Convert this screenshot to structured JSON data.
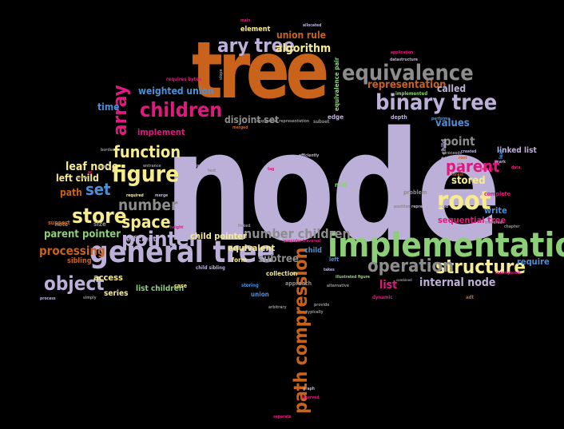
{
  "palette": {
    "lavender": "#bcb0d9",
    "orange": "#c9621b",
    "green": "#8dcf78",
    "pink": "#e0197e",
    "yellow": "#f6eb8f",
    "blue": "#4a8fd8",
    "grey": "#8d8d8d",
    "background": "#000000"
  },
  "words": [
    {
      "text": "node",
      "color": "lavender"
    },
    {
      "text": "tree",
      "color": "orange"
    },
    {
      "text": "implementation",
      "color": "green"
    },
    {
      "text": "general tree",
      "color": "lavender"
    },
    {
      "text": "binary tree",
      "color": "lavender"
    },
    {
      "text": "path compression",
      "color": "orange"
    },
    {
      "text": "ary tree",
      "color": "lavender"
    },
    {
      "text": "equivalence",
      "color": "grey"
    },
    {
      "text": "root",
      "color": "yellow"
    },
    {
      "text": "structure",
      "color": "yellow"
    },
    {
      "text": "operation",
      "color": "grey"
    },
    {
      "text": "array",
      "color": "pink"
    },
    {
      "text": "children",
      "color": "pink"
    },
    {
      "text": "figure",
      "color": "yellow"
    },
    {
      "text": "function",
      "color": "yellow"
    },
    {
      "text": "store",
      "color": "yellow"
    },
    {
      "text": "space",
      "color": "yellow"
    },
    {
      "text": "pointer",
      "color": "lavender"
    },
    {
      "text": "object",
      "color": "lavender"
    },
    {
      "text": "parent",
      "color": "pink"
    },
    {
      "text": "number",
      "color": "grey"
    },
    {
      "text": "number children",
      "color": "grey"
    },
    {
      "text": "algorithm",
      "color": "yellow"
    },
    {
      "text": "union rule",
      "color": "orange"
    },
    {
      "text": "set",
      "color": "blue"
    },
    {
      "text": "representation",
      "color": "orange"
    },
    {
      "text": "list",
      "color": "pink"
    },
    {
      "text": "internal node",
      "color": "lavender"
    },
    {
      "text": "weighted union",
      "color": "blue"
    },
    {
      "text": "processing",
      "color": "orange"
    },
    {
      "text": "parent pointer",
      "color": "green"
    },
    {
      "text": "point",
      "color": "grey"
    },
    {
      "text": "values",
      "color": "blue"
    },
    {
      "text": "stored",
      "color": "yellow"
    },
    {
      "text": "leaf node",
      "color": "yellow"
    },
    {
      "text": "left child",
      "color": "yellow"
    },
    {
      "text": "path",
      "color": "orange"
    },
    {
      "text": "subtree",
      "color": "grey"
    },
    {
      "text": "child pointer",
      "color": "yellow"
    },
    {
      "text": "called",
      "color": "lavender"
    },
    {
      "text": "disjoint set",
      "color": "grey"
    },
    {
      "text": "equivalent",
      "color": "yellow"
    },
    {
      "text": "sequential tree",
      "color": "pink"
    },
    {
      "text": "write",
      "color": "blue"
    },
    {
      "text": "require",
      "color": "blue"
    },
    {
      "text": "time",
      "color": "blue"
    },
    {
      "text": "implement",
      "color": "pink"
    },
    {
      "text": "access",
      "color": "yellow"
    },
    {
      "text": "series",
      "color": "yellow"
    },
    {
      "text": "list children",
      "color": "green"
    },
    {
      "text": "child",
      "color": "blue"
    },
    {
      "text": "linked list",
      "color": "lavender"
    },
    {
      "text": "element",
      "color": "yellow"
    },
    {
      "text": "sibling",
      "color": "orange"
    },
    {
      "text": "efficient",
      "color": "lavender"
    },
    {
      "text": "collection",
      "color": "yellow"
    },
    {
      "text": "union",
      "color": "blue"
    },
    {
      "text": "edge",
      "color": "lavender"
    },
    {
      "text": "depth",
      "color": "lavender"
    },
    {
      "text": "null",
      "color": "green"
    },
    {
      "text": "size",
      "color": "grey"
    },
    {
      "text": "note",
      "color": "grey"
    },
    {
      "text": "support",
      "color": "orange"
    },
    {
      "text": "form",
      "color": "yellow"
    },
    {
      "text": "left",
      "color": "blue"
    },
    {
      "text": "approach",
      "color": "grey"
    },
    {
      "text": "dynamic",
      "color": "pink"
    },
    {
      "text": "adt",
      "color": "orange"
    },
    {
      "text": "problem",
      "color": "grey"
    },
    {
      "text": "complete",
      "color": "pink"
    },
    {
      "text": "case",
      "color": "yellow"
    },
    {
      "text": "implemented",
      "color": "green"
    },
    {
      "text": "leftmost child",
      "color": "lavender"
    },
    {
      "text": "equivalence pair",
      "color": "green"
    },
    {
      "text": "subset",
      "color": "grey"
    },
    {
      "text": "storing",
      "color": "blue"
    },
    {
      "text": "child sibling",
      "color": "lavender"
    },
    {
      "text": "requires bytes",
      "color": "pink"
    },
    {
      "text": "datastructure",
      "color": "lavender"
    },
    {
      "text": "application",
      "color": "pink"
    },
    {
      "text": "allocated",
      "color": "lavender"
    },
    {
      "text": "branches",
      "color": "orange"
    },
    {
      "text": "main",
      "color": "pink"
    },
    {
      "text": "linked",
      "color": "grey"
    },
    {
      "text": "based",
      "color": "lavender"
    },
    {
      "text": "provide",
      "color": "grey"
    },
    {
      "text": "typically",
      "color": "grey"
    },
    {
      "text": "graph",
      "color": "lavender"
    },
    {
      "text": "reserved",
      "color": "pink"
    },
    {
      "text": "separate",
      "color": "pink"
    },
    {
      "text": "takes",
      "color": "lavender"
    },
    {
      "text": "illustrated figure",
      "color": "green"
    },
    {
      "text": "combined",
      "color": "grey"
    },
    {
      "text": "represent",
      "color": "lavender"
    },
    {
      "text": "represented",
      "color": "lavender"
    },
    {
      "text": "position",
      "color": "grey"
    },
    {
      "text": "change",
      "color": "lavender"
    },
    {
      "text": "alternative",
      "color": "grey"
    },
    {
      "text": "preorder traversal",
      "color": "pink"
    },
    {
      "text": "arbitrary",
      "color": "grey"
    },
    {
      "text": "process",
      "color": "lavender"
    },
    {
      "text": "simply",
      "color": "grey"
    },
    {
      "text": "merge",
      "color": "lavender"
    },
    {
      "text": "required",
      "color": "yellow"
    },
    {
      "text": "entrance",
      "color": "grey"
    },
    {
      "text": "height",
      "color": "pink"
    },
    {
      "text": "sequential representation",
      "color": "grey"
    },
    {
      "text": "created",
      "color": "lavender"
    },
    {
      "text": "proceeds",
      "color": "grey"
    },
    {
      "text": "return",
      "color": "pink"
    },
    {
      "text": "mark",
      "color": "lavender"
    },
    {
      "text": "leaf",
      "color": "blue"
    },
    {
      "text": "data",
      "color": "pink"
    },
    {
      "text": "traversal",
      "color": "grey"
    },
    {
      "text": "chapter",
      "color": "grey"
    },
    {
      "text": "recomposed",
      "color": "pink"
    },
    {
      "text": "merged",
      "color": "orange"
    },
    {
      "text": "single",
      "color": "lavender"
    },
    {
      "text": "slope",
      "color": "grey"
    },
    {
      "text": "efficiently",
      "color": "lavender"
    },
    {
      "text": "root",
      "color": "orange"
    },
    {
      "text": "test",
      "color": "grey"
    },
    {
      "text": "border",
      "color": "grey"
    },
    {
      "text": "tag",
      "color": "pink"
    },
    {
      "text": "performs",
      "color": "blue"
    },
    {
      "text": "forest",
      "color": "orange"
    },
    {
      "text": "ac",
      "color": "pink"
    },
    {
      "text": "seek",
      "color": "grey"
    },
    {
      "text": "order",
      "color": "grey"
    },
    {
      "text": "list",
      "color": "lavender"
    }
  ]
}
